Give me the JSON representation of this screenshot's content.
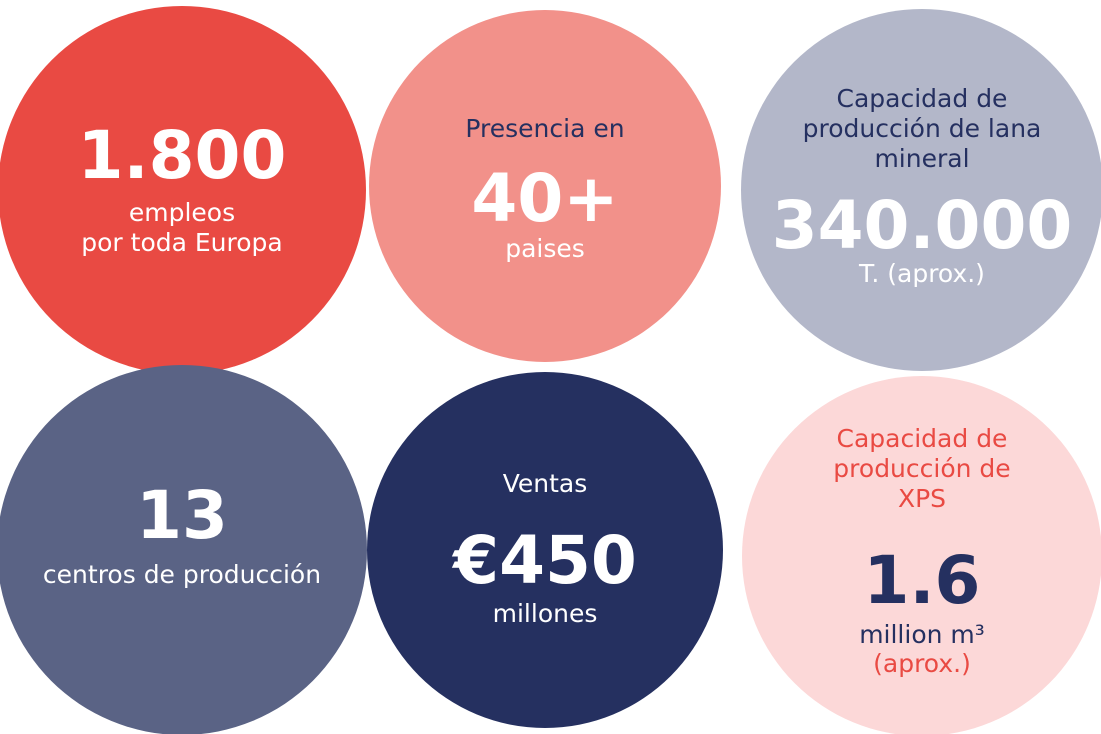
{
  "items": [
    {
      "color": "#e94a43",
      "heading": [],
      "value": "1.800",
      "caption": [
        "empleos",
        "por toda Europa"
      ]
    },
    {
      "color": "#f2918a",
      "heading": [
        "Presencia en"
      ],
      "value": "40+",
      "caption": [
        "paises"
      ]
    },
    {
      "color": "#b3b7c9",
      "heading": [
        "Capacidad de",
        "producción de lana",
        "mineral"
      ],
      "value": "340.000",
      "caption": [
        "T. (aprox.)"
      ]
    },
    {
      "color": "#5a6385",
      "heading": [],
      "value": "13",
      "caption": [
        "centros de producción"
      ]
    },
    {
      "color": "#253060",
      "heading": [
        "Ventas"
      ],
      "value": "€450",
      "caption": [
        "millones"
      ]
    },
    {
      "color": "#fcd8d8",
      "heading": [
        "Capacidad de",
        "producción de",
        "XPS"
      ],
      "value": "1.6",
      "caption": [
        "million m³",
        "(aprox.)"
      ]
    }
  ]
}
